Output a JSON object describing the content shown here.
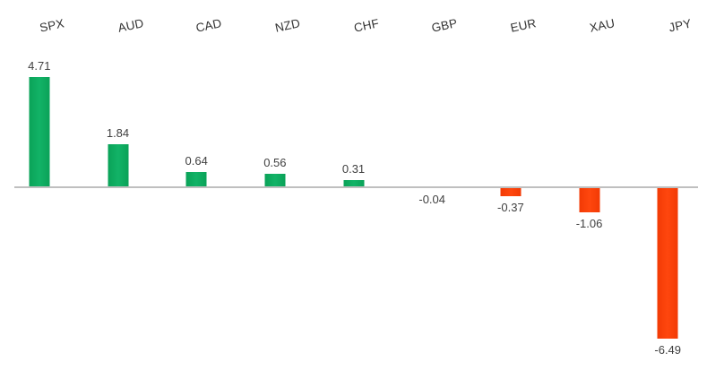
{
  "chart_data": {
    "type": "bar",
    "title": "",
    "xlabel": "",
    "ylabel": "",
    "categories": [
      "SPX",
      "AUD",
      "CAD",
      "NZD",
      "CHF",
      "GBP",
      "EUR",
      "XAU",
      "JPY"
    ],
    "values": [
      4.71,
      1.84,
      0.64,
      0.56,
      0.31,
      -0.04,
      -0.37,
      -1.06,
      -6.49
    ],
    "data_labels": [
      "4.71",
      "1.84",
      "0.64",
      "0.56",
      "0.31",
      "-0.04",
      "-0.37",
      "-1.06",
      "-6.49"
    ],
    "ylim": [
      -7,
      5
    ],
    "grid": false,
    "legend": "none",
    "category_label_position": "top",
    "category_label_rotation_deg": -12,
    "data_label_position": "outside-end",
    "colors": {
      "positive_bar": "#0FAA5D",
      "negative_bar": "#FA3B0E",
      "axis_line": "#BFBFBF",
      "label_text": "#404040",
      "background": "#FFFFFF"
    }
  }
}
